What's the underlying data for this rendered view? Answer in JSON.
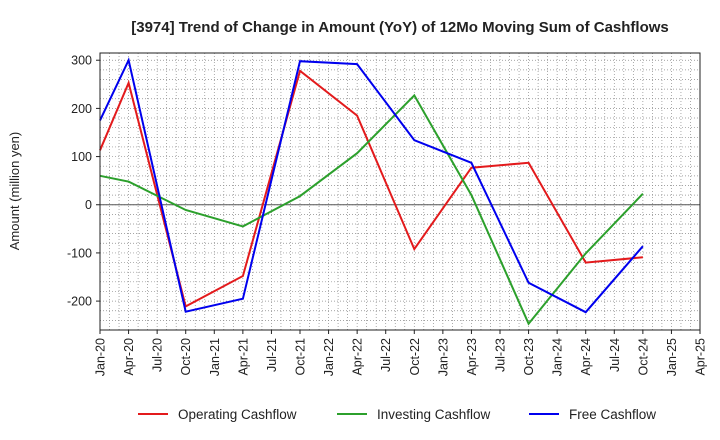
{
  "chart_data": {
    "type": "line",
    "title": "[3974]  Trend of Change in Amount (YoY) of 12Mo Moving Sum of Cashflows",
    "xlabel": "",
    "ylabel": "Amount (million yen)",
    "ylim": [
      -260,
      315
    ],
    "yticks": [
      300,
      200,
      100,
      0,
      -100,
      -200
    ],
    "categories": [
      "Jan-20",
      "Apr-20",
      "Jul-20",
      "Oct-20",
      "Jan-21",
      "Apr-21",
      "Jul-21",
      "Oct-21",
      "Jan-22",
      "Apr-22",
      "Jul-22",
      "Oct-22",
      "Jan-23",
      "Apr-23",
      "Jul-23",
      "Oct-23",
      "Jan-24",
      "Apr-24",
      "Jul-24",
      "Oct-24",
      "Jan-25",
      "Apr-25"
    ],
    "grid": true,
    "legend_position": "bottom",
    "series": [
      {
        "name": "Operating Cashflow",
        "color": "#e31a1c",
        "values": [
          113,
          253,
          null,
          -211,
          null,
          -148,
          null,
          278,
          null,
          185,
          null,
          -92,
          null,
          77,
          null,
          87,
          null,
          -120,
          null,
          -109,
          null,
          null
        ]
      },
      {
        "name": "Investing Cashflow",
        "color": "#2ca02c",
        "values": [
          60,
          48,
          null,
          -11,
          null,
          -45,
          null,
          18,
          null,
          107,
          null,
          227,
          null,
          20,
          null,
          -247,
          null,
          -101,
          null,
          23,
          null,
          null
        ]
      },
      {
        "name": "Free Cashflow",
        "color": "#0000ee",
        "values": [
          175,
          300,
          null,
          -222,
          null,
          -195,
          null,
          298,
          null,
          292,
          null,
          134,
          null,
          87,
          null,
          -162,
          null,
          -223,
          null,
          -86,
          null,
          null
        ]
      }
    ]
  }
}
